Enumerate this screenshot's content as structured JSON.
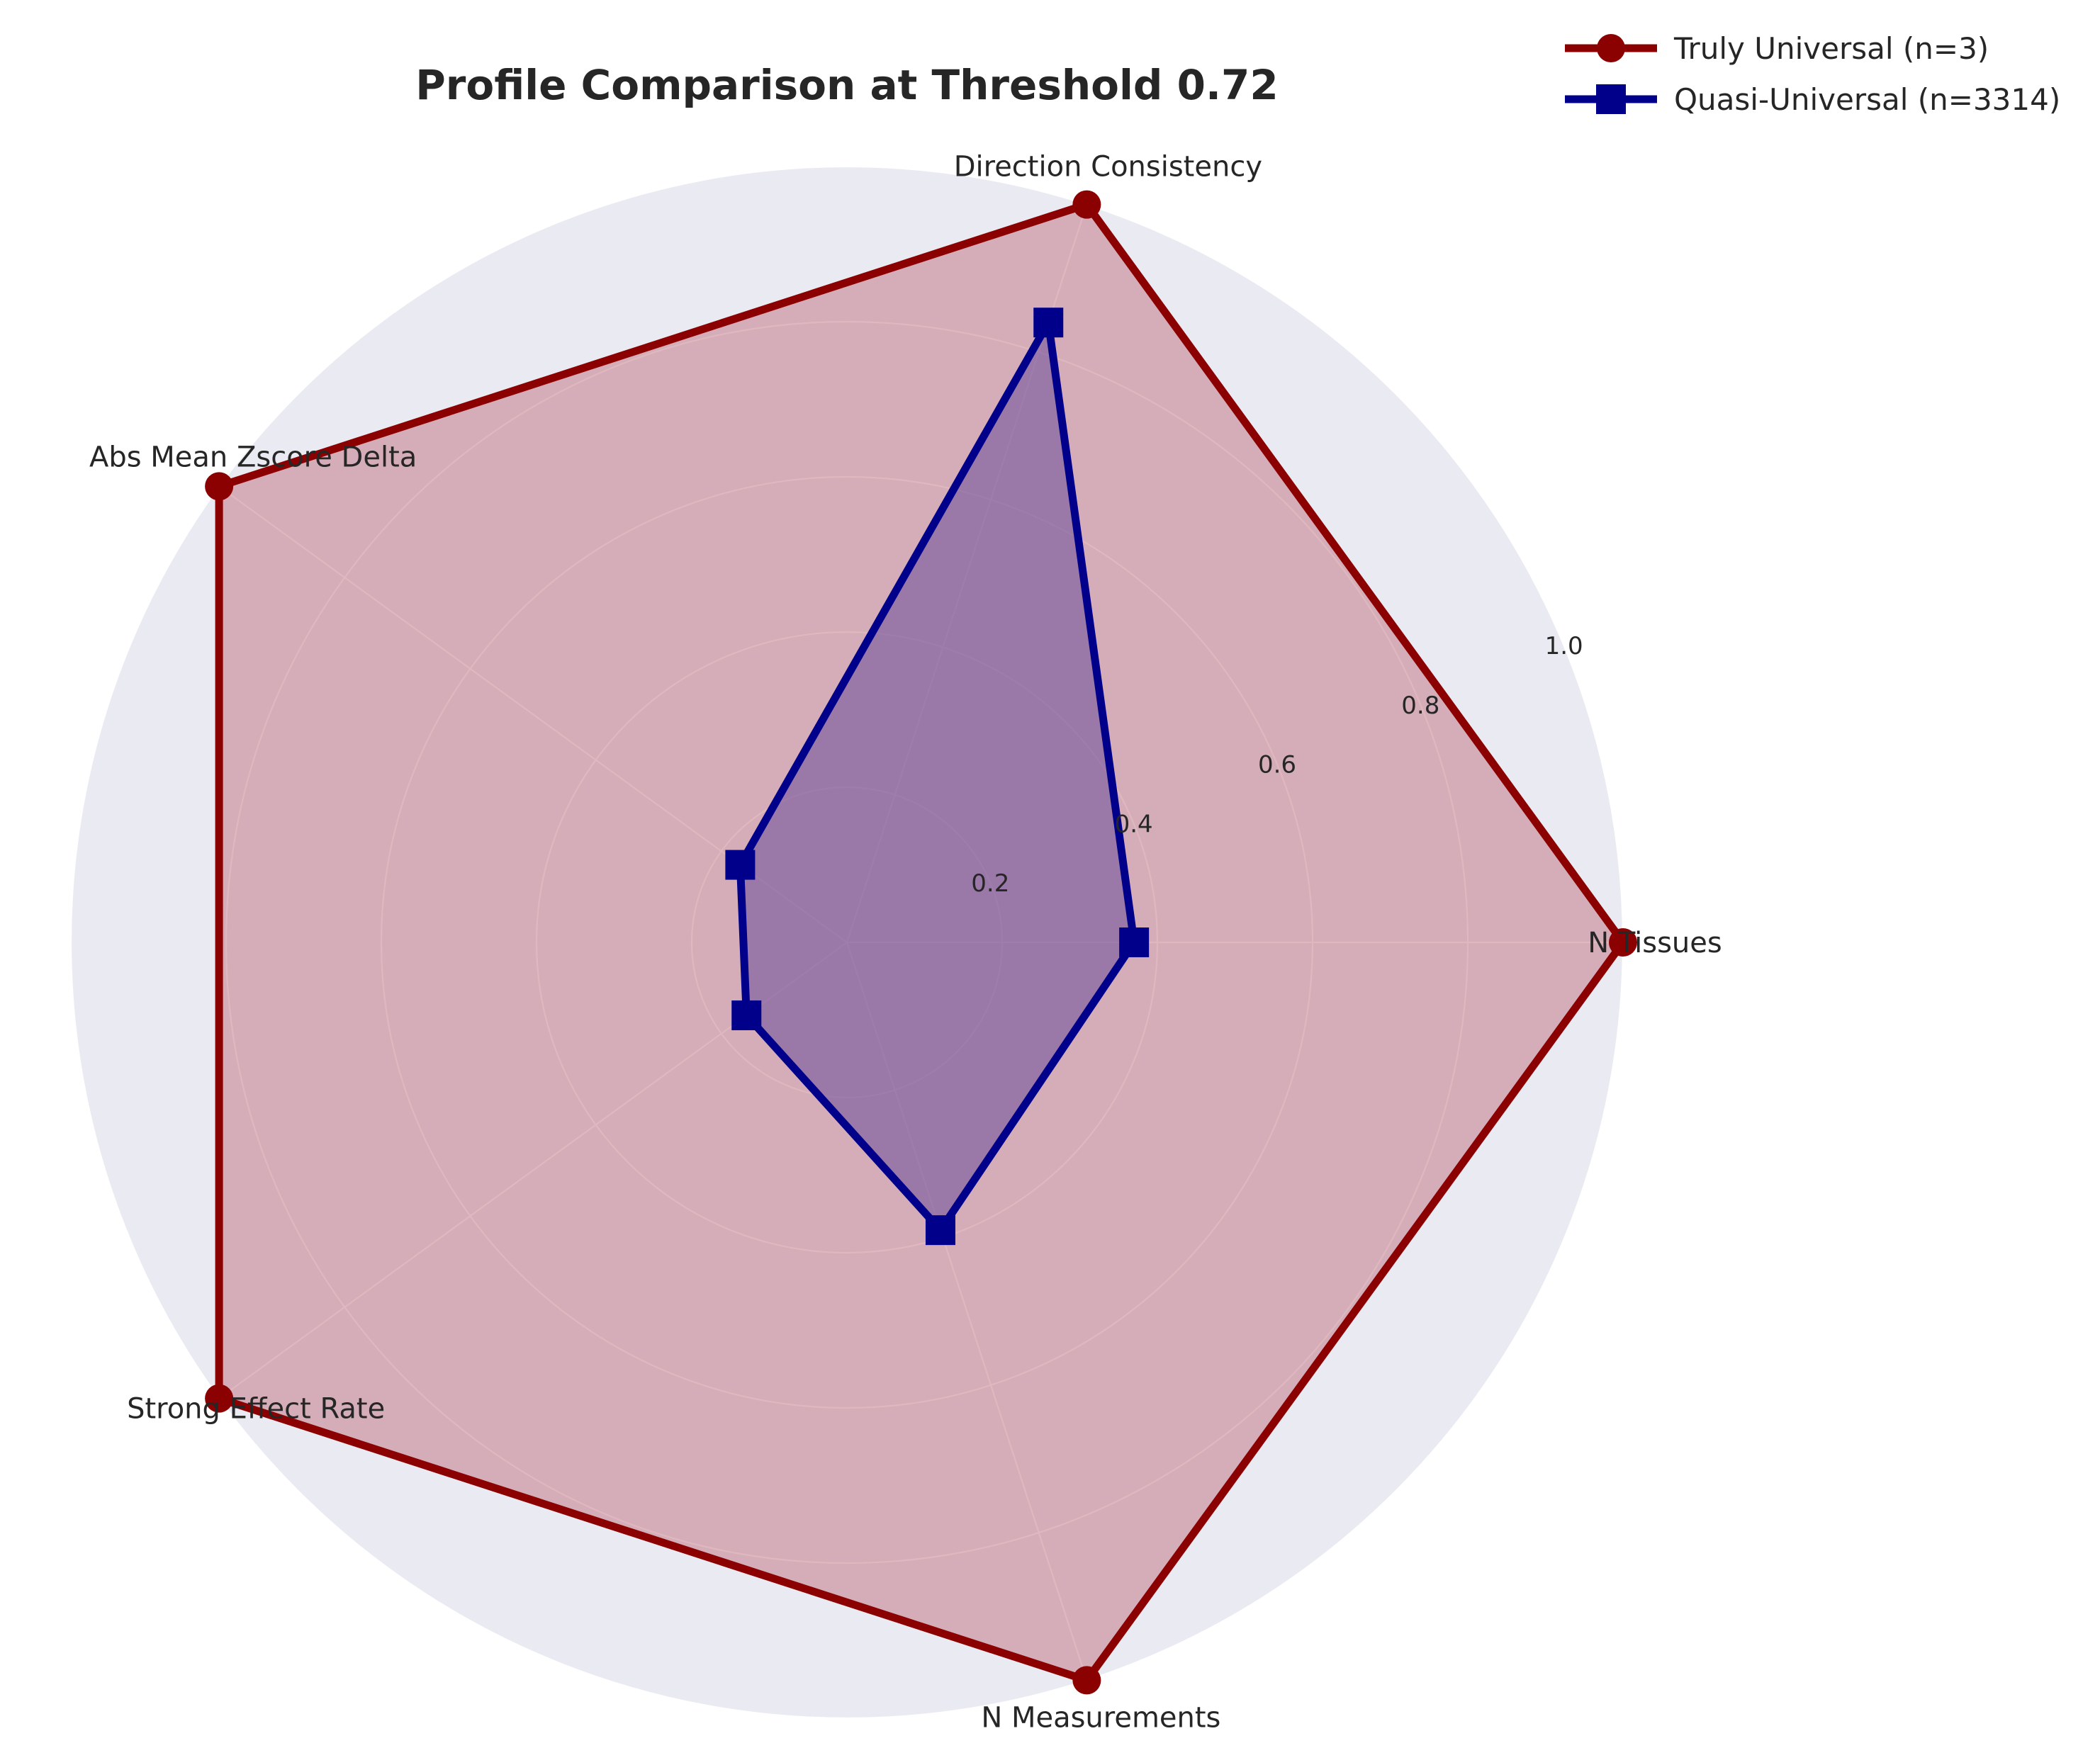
{
  "chart_data": {
    "type": "radar",
    "title": "Profile Comparison at Threshold 0.72",
    "axes": [
      "N Tissues",
      "Direction Consistency",
      "Abs Mean Zscore Delta",
      "Strong Effect Rate",
      "N Measurements"
    ],
    "rlim": [
      0,
      1.0
    ],
    "rticks": [
      0.2,
      0.4,
      0.6,
      0.8,
      1.0
    ],
    "rtick_labels": [
      "0.2",
      "0.4",
      "0.6",
      "0.8",
      "1.0"
    ],
    "grid": true,
    "legend_position": "top-right",
    "series": [
      {
        "name": "Truly Universal (n=3)",
        "values": [
          1.0,
          1.0,
          1.0,
          1.0,
          1.0
        ],
        "color": "#8b0000",
        "fill": "#c0707e",
        "marker": "circle"
      },
      {
        "name": "Quasi-Universal (n=3314)",
        "values": [
          0.37,
          0.84,
          0.17,
          0.16,
          0.39
        ],
        "color": "#00008b",
        "fill": "#6a4d9a",
        "marker": "square"
      }
    ]
  }
}
